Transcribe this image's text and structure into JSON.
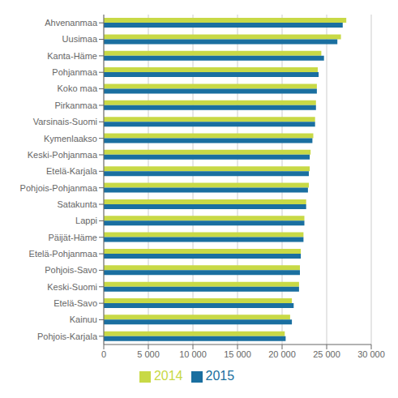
{
  "chart_data": {
    "type": "bar",
    "orientation": "horizontal",
    "categories": [
      "Ahvenanmaa",
      "Uusimaa",
      "Kanta-Häme",
      "Pohjanmaa",
      "Koko maa",
      "Pirkanmaa",
      "Varsinais-Suomi",
      "Kymenlaakso",
      "Keski-Pohjanmaa",
      "Etelä-Karjala",
      "Pohjois-Pohjanmaa",
      "Satakunta",
      "Lappi",
      "Päijät-Häme",
      "Etelä-Pohjanmaa",
      "Pohjois-Savo",
      "Keski-Suomi",
      "Etelä-Savo",
      "Kainuu",
      "Pohjois-Karjala"
    ],
    "series": [
      {
        "name": "2014",
        "color": "#c8d946",
        "values": [
          27200,
          26600,
          24400,
          24000,
          23900,
          23800,
          23700,
          23500,
          23200,
          23100,
          23000,
          22700,
          22500,
          22400,
          22100,
          22000,
          21900,
          21100,
          20900,
          20300
        ]
      },
      {
        "name": "2015",
        "color": "#1a6fa0",
        "values": [
          26800,
          26200,
          24700,
          24100,
          23900,
          23800,
          23700,
          23400,
          23100,
          23000,
          22900,
          22700,
          22500,
          22400,
          22100,
          22000,
          21900,
          21300,
          21100,
          20400
        ]
      }
    ],
    "xlim": [
      0,
      30000
    ],
    "xticks": [
      0,
      {
        "value": 5000,
        "label": "5 000"
      },
      {
        "value": 10000,
        "label": "10 000"
      },
      {
        "value": 15000,
        "label": "15 000"
      },
      {
        "value": 20000,
        "label": "20 000"
      },
      {
        "value": 25000,
        "label": "25 000"
      },
      {
        "value": 30000,
        "label": "30 000"
      }
    ],
    "grid": true,
    "legend": "bottom"
  }
}
